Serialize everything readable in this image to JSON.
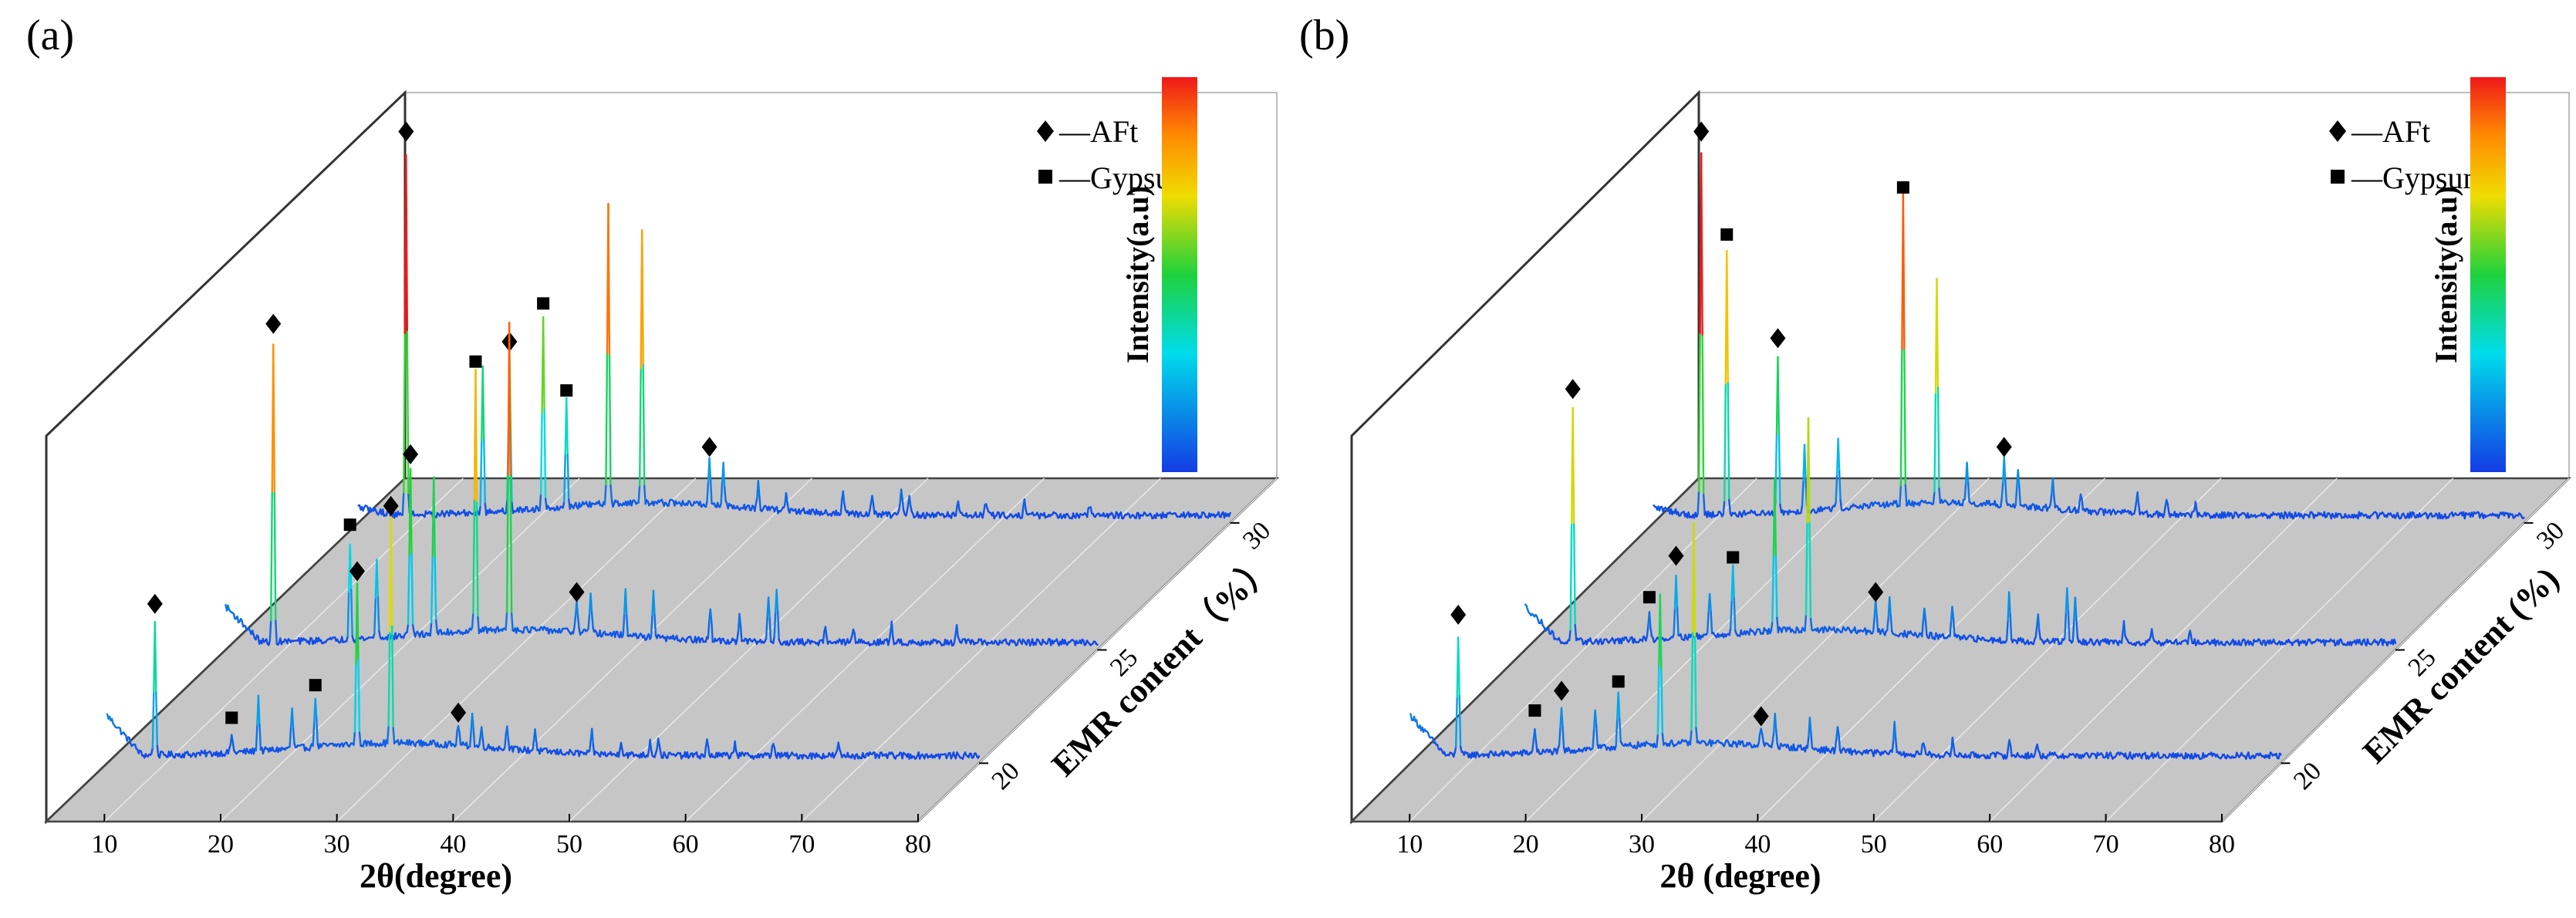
{
  "chart_data": [
    {
      "type": "line",
      "panel_label": "(a)",
      "title": "",
      "xlabel": "2θ(degree)",
      "zlabel": "EMR content（%）",
      "colorbar_label": "Intensity(a.u)",
      "x_ticks": [
        "10",
        "20",
        "30",
        "40",
        "50",
        "60",
        "70",
        "80"
      ],
      "z_ticks": [
        "20",
        "25",
        "30"
      ],
      "xlim": [
        5,
        80
      ],
      "legend": [
        {
          "marker": "diamond",
          "label": "—AFt"
        },
        {
          "marker": "square",
          "label": "—Gypsum"
        }
      ],
      "series": [
        {
          "name": "20",
          "start_rise": 0.5,
          "peaks": [
            [
              9.1,
              0.36
            ],
            [
              15.7,
              0.05
            ],
            [
              18.0,
              0.15
            ],
            [
              20.9,
              0.11
            ],
            [
              22.9,
              0.14
            ],
            [
              26.5,
              0.45
            ],
            [
              29.4,
              0.63
            ],
            [
              35.2,
              0.06
            ],
            [
              36.4,
              0.09
            ],
            [
              37.2,
              0.05
            ],
            [
              39.4,
              0.07
            ],
            [
              41.8,
              0.06
            ],
            [
              46.7,
              0.06
            ],
            [
              49.2,
              0.04
            ],
            [
              51.7,
              0.04
            ],
            [
              52.4,
              0.05
            ],
            [
              56.6,
              0.04
            ],
            [
              59.0,
              0.04
            ],
            [
              62.3,
              0.04
            ],
            [
              67.9,
              0.03
            ]
          ],
          "afts": [
            9.1,
            26.5,
            29.4,
            35.2
          ],
          "gypsums": [
            15.7,
            22.9
          ]
        },
        {
          "name": "25",
          "start_rise": 0.45,
          "peaks": [
            [
              9.1,
              0.82
            ],
            [
              15.7,
              0.27
            ],
            [
              18.0,
              0.22
            ],
            [
              20.9,
              0.46
            ],
            [
              22.9,
              0.43
            ],
            [
              26.5,
              0.72
            ],
            [
              29.4,
              0.85
            ],
            [
              35.2,
              0.08
            ],
            [
              36.4,
              0.1
            ],
            [
              39.4,
              0.12
            ],
            [
              41.8,
              0.13
            ],
            [
              46.7,
              0.09
            ],
            [
              49.2,
              0.07
            ],
            [
              51.7,
              0.13
            ],
            [
              52.4,
              0.15
            ],
            [
              56.6,
              0.05
            ],
            [
              59.0,
              0.04
            ],
            [
              62.3,
              0.05
            ],
            [
              67.9,
              0.04
            ]
          ],
          "afts": [
            9.1,
            20.9,
            35.2
          ],
          "gypsums": [
            15.7,
            26.5
          ]
        },
        {
          "name": "30",
          "start_rise": 0.1,
          "peaks": [
            [
              9.1,
              1.0
            ],
            [
              15.7,
              0.4
            ],
            [
              18.0,
              0.42
            ],
            [
              20.9,
              0.53
            ],
            [
              22.9,
              0.29
            ],
            [
              26.5,
              0.82
            ],
            [
              29.4,
              0.75
            ],
            [
              35.2,
              0.13
            ],
            [
              36.4,
              0.12
            ],
            [
              39.4,
              0.07
            ],
            [
              41.8,
              0.05
            ],
            [
              46.7,
              0.06
            ],
            [
              49.2,
              0.05
            ],
            [
              51.7,
              0.07
            ],
            [
              52.4,
              0.06
            ],
            [
              56.6,
              0.04
            ],
            [
              59.0,
              0.04
            ],
            [
              62.3,
              0.04
            ],
            [
              67.9,
              0.03
            ]
          ],
          "afts": [
            9.1,
            18.0,
            35.2
          ],
          "gypsums": [
            20.9,
            22.9
          ]
        }
      ]
    },
    {
      "type": "line",
      "panel_label": "(b)",
      "title": "",
      "xlabel": "2θ (degree)",
      "zlabel": "EMR content (%)",
      "colorbar_label": "Intensity(a.u)",
      "x_ticks": [
        "10",
        "20",
        "30",
        "40",
        "50",
        "60",
        "70",
        "80"
      ],
      "z_ticks": [
        "20",
        "25",
        "30"
      ],
      "xlim": [
        5,
        80
      ],
      "legend": [
        {
          "marker": "diamond",
          "label": "—AFt"
        },
        {
          "marker": "square",
          "label": "—Gypsum"
        }
      ],
      "series": [
        {
          "name": "20",
          "start_rise": 0.5,
          "peaks": [
            [
              9.1,
              0.33
            ],
            [
              15.7,
              0.07
            ],
            [
              18.0,
              0.12
            ],
            [
              20.9,
              0.11
            ],
            [
              22.9,
              0.15
            ],
            [
              26.5,
              0.42
            ],
            [
              29.4,
              0.6
            ],
            [
              35.2,
              0.05
            ],
            [
              36.4,
              0.09
            ],
            [
              39.4,
              0.08
            ],
            [
              41.8,
              0.07
            ],
            [
              46.7,
              0.09
            ],
            [
              49.2,
              0.04
            ],
            [
              51.7,
              0.04
            ],
            [
              56.6,
              0.04
            ],
            [
              59.0,
              0.03
            ]
          ],
          "afts": [
            9.1,
            18.0,
            35.2
          ],
          "gypsums": [
            15.7,
            22.9
          ]
        },
        {
          "name": "25",
          "start_rise": 0.45,
          "peaks": [
            [
              9.1,
              0.64
            ],
            [
              15.7,
              0.07
            ],
            [
              18.0,
              0.18
            ],
            [
              20.9,
              0.12
            ],
            [
              22.9,
              0.18
            ],
            [
              26.5,
              0.42
            ],
            [
              29.4,
              0.59
            ],
            [
              35.2,
              0.08
            ],
            [
              36.4,
              0.09
            ],
            [
              39.4,
              0.07
            ],
            [
              41.8,
              0.09
            ],
            [
              46.7,
              0.13
            ],
            [
              49.2,
              0.07
            ],
            [
              51.7,
              0.15
            ],
            [
              52.4,
              0.12
            ],
            [
              56.6,
              0.05
            ],
            [
              59.0,
              0.04
            ],
            [
              62.3,
              0.04
            ]
          ],
          "afts": [
            9.1,
            18.0,
            35.2
          ],
          "gypsums": [
            15.7,
            22.9
          ]
        },
        {
          "name": "30",
          "start_rise": 0.1,
          "peaks": [
            [
              9.1,
              1.0
            ],
            [
              11.3,
              0.72
            ],
            [
              15.7,
              0.43
            ],
            [
              18.0,
              0.18
            ],
            [
              20.9,
              0.2
            ],
            [
              26.5,
              0.85
            ],
            [
              29.4,
              0.62
            ],
            [
              32.0,
              0.12
            ],
            [
              35.2,
              0.13
            ],
            [
              36.4,
              0.1
            ],
            [
              39.4,
              0.08
            ],
            [
              41.8,
              0.05
            ],
            [
              46.7,
              0.05
            ],
            [
              49.2,
              0.04
            ],
            [
              51.7,
              0.03
            ]
          ],
          "afts": [
            9.1,
            15.7,
            35.2
          ],
          "gypsums": [
            11.3,
            26.5
          ]
        }
      ]
    }
  ]
}
